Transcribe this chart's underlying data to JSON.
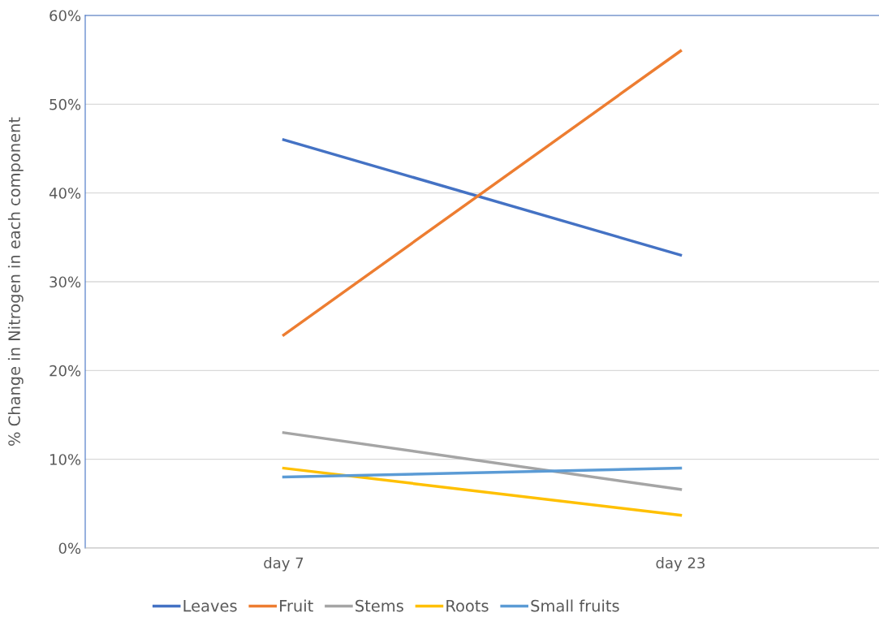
{
  "chart_data": {
    "type": "line",
    "ylabel": "% Change in Nitrogen in each component",
    "categories": [
      "day 7",
      "day 23"
    ],
    "series": [
      {
        "name": "Leaves",
        "color": "#4472c4",
        "values": [
          46,
          33
        ]
      },
      {
        "name": "Fruit",
        "color": "#ed7d31",
        "values": [
          24,
          56
        ]
      },
      {
        "name": "Stems",
        "color": "#a5a5a5",
        "values": [
          13,
          6.6
        ]
      },
      {
        "name": "Roots",
        "color": "#ffc000",
        "values": [
          9,
          3.7
        ]
      },
      {
        "name": "Small fruits",
        "color": "#5b9bd5",
        "values": [
          8,
          9
        ]
      }
    ],
    "ylim": [
      0,
      60
    ],
    "yticks": [
      {
        "value": 0,
        "label": "0%"
      },
      {
        "value": 10,
        "label": "10%"
      },
      {
        "value": 20,
        "label": "20%"
      },
      {
        "value": 30,
        "label": "30%"
      },
      {
        "value": 40,
        "label": "40%"
      },
      {
        "value": 50,
        "label": "50%"
      },
      {
        "value": 60,
        "label": "60%"
      }
    ],
    "grid": "y",
    "legend": "bottom",
    "marker": "none",
    "line_style": "solid"
  }
}
